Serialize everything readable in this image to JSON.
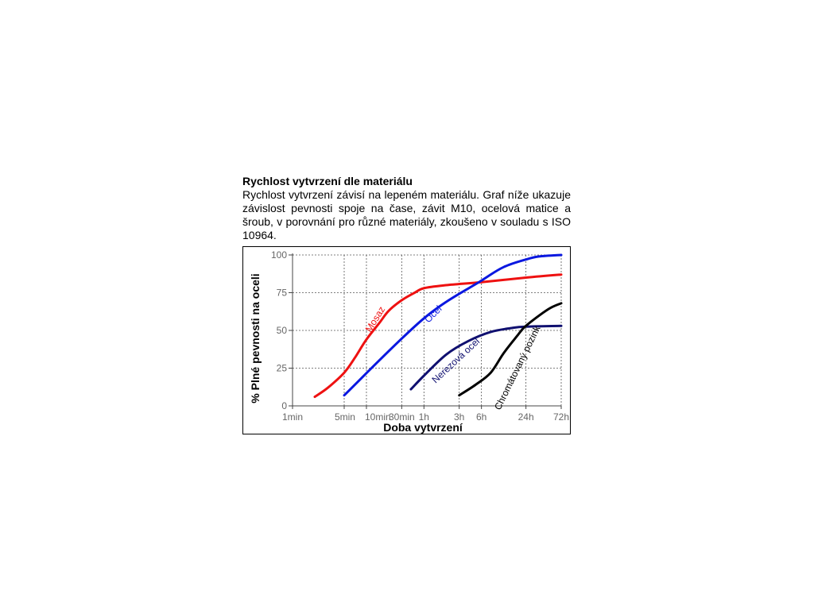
{
  "document": {
    "title": "Rychlost vytvrzení dle materiálu",
    "paragraph": "Rychlost vytvrzení závisí na lepeném materiálu. Graf níže ukazuje závislost pevnosti spoje na čase, závit M10, ocelová matice a šroub, v porovnání pro různé materiály, zkoušeno v souladu s ISO 10964."
  },
  "chart_data": {
    "type": "line",
    "title": "",
    "xlabel": "Doba vytvrzení",
    "ylabel": "% Plné pevnosti na oceli",
    "x_scale": "log",
    "x_unit": "min",
    "x_ticks": [
      {
        "label": "1min",
        "minutes": 1
      },
      {
        "label": "5min",
        "minutes": 5
      },
      {
        "label": "10min",
        "minutes": 10
      },
      {
        "label": "30min",
        "minutes": 30
      },
      {
        "label": "1h",
        "minutes": 60
      },
      {
        "label": "3h",
        "minutes": 180
      },
      {
        "label": "6h",
        "minutes": 360
      },
      {
        "label": "24h",
        "minutes": 1440
      },
      {
        "label": "72h",
        "minutes": 4320
      }
    ],
    "y_ticks": [
      0,
      25,
      50,
      75,
      100
    ],
    "ylim": [
      0,
      100
    ],
    "grid": true,
    "series": [
      {
        "name": "Mosaz",
        "color": "#ee1111",
        "points": [
          [
            2,
            6
          ],
          [
            3,
            12
          ],
          [
            5,
            22
          ],
          [
            7,
            32
          ],
          [
            10,
            44
          ],
          [
            15,
            55
          ],
          [
            20,
            63
          ],
          [
            30,
            70
          ],
          [
            45,
            75
          ],
          [
            60,
            78
          ],
          [
            120,
            80
          ],
          [
            360,
            82
          ],
          [
            1440,
            85
          ],
          [
            4320,
            87
          ]
        ]
      },
      {
        "name": "Ocel",
        "color": "#0a18e0",
        "points": [
          [
            5,
            7
          ],
          [
            60,
            58
          ],
          [
            360,
            83
          ],
          [
            720,
            92
          ],
          [
            1440,
            97
          ],
          [
            2160,
            99
          ],
          [
            4320,
            100
          ]
        ]
      },
      {
        "name": "Nerezová ocel",
        "color": "#101070",
        "points": [
          [
            40,
            11
          ],
          [
            60,
            20
          ],
          [
            120,
            34
          ],
          [
            240,
            43
          ],
          [
            480,
            49
          ],
          [
            900,
            51.5
          ],
          [
            1440,
            52.5
          ],
          [
            4320,
            53
          ]
        ]
      },
      {
        "name": "Chromátovaný pozink",
        "color": "#000000",
        "points": [
          [
            180,
            7
          ],
          [
            300,
            14
          ],
          [
            480,
            22
          ],
          [
            720,
            35
          ],
          [
            1080,
            46
          ],
          [
            1440,
            53
          ],
          [
            2880,
            64
          ],
          [
            4320,
            68
          ]
        ]
      }
    ]
  }
}
